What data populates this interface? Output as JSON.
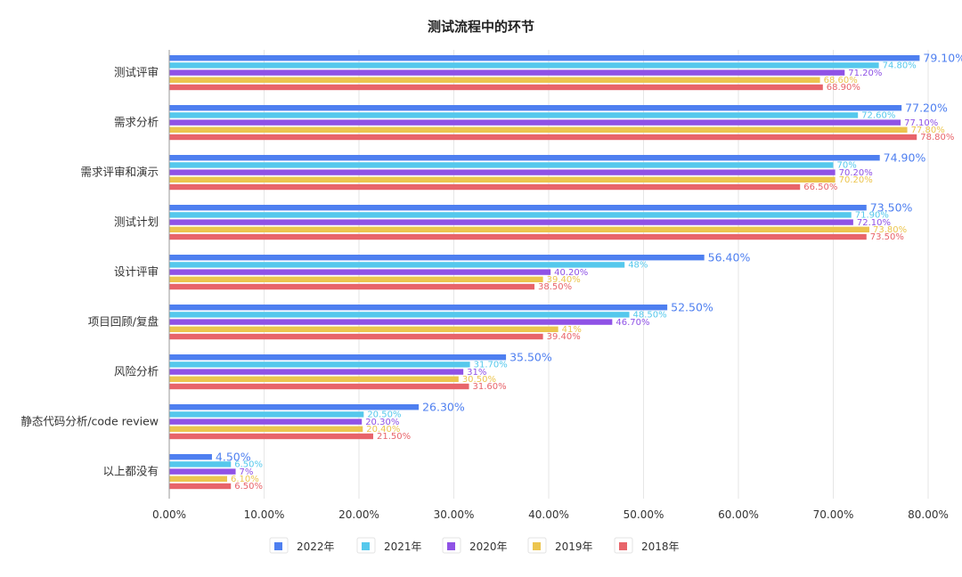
{
  "chart_data": {
    "type": "bar",
    "orientation": "horizontal",
    "title": "测试流程中的环节",
    "categories": [
      "测试评审",
      "需求分析",
      "需求评审和演示",
      "测试计划",
      "设计评审",
      "项目回顾/复盘",
      "风险分析",
      "静态代码分析/code review",
      "以上都没有"
    ],
    "series": [
      {
        "name": "2022年",
        "color": "#4e7ff0",
        "values": [
          79.1,
          77.2,
          74.9,
          73.5,
          56.4,
          52.5,
          35.5,
          26.3,
          4.5
        ],
        "labels": [
          "79.10%",
          "77.20%",
          "74.90%",
          "73.50%",
          "56.40%",
          "52.50%",
          "35.50%",
          "26.30%",
          "4.50%"
        ]
      },
      {
        "name": "2021年",
        "color": "#55c8ec",
        "values": [
          74.8,
          72.6,
          70,
          71.9,
          48,
          48.5,
          31.7,
          20.5,
          6.5
        ],
        "labels": [
          "74.80%",
          "72.60%",
          "70%",
          "71.90%",
          "48%",
          "48.50%",
          "31.70%",
          "20.50%",
          "6.50%"
        ]
      },
      {
        "name": "2020年",
        "color": "#8f52e6",
        "values": [
          71.2,
          77.1,
          70.2,
          72.1,
          40.2,
          46.7,
          31,
          20.3,
          7
        ],
        "labels": [
          "71.20%",
          "77.10%",
          "70.20%",
          "72.10%",
          "40.20%",
          "46.70%",
          "31%",
          "20.30%",
          "7%"
        ]
      },
      {
        "name": "2019年",
        "color": "#ecc54f",
        "values": [
          68.6,
          77.8,
          70.2,
          73.8,
          39.4,
          41,
          30.5,
          20.4,
          6.1
        ],
        "labels": [
          "68.60%",
          "77.80%",
          "70.20%",
          "73.80%",
          "39.40%",
          "41%",
          "30.50%",
          "20.40%",
          "6.10%"
        ]
      },
      {
        "name": "2018年",
        "color": "#e8646a",
        "values": [
          68.9,
          78.8,
          66.5,
          73.5,
          38.5,
          39.4,
          31.6,
          21.5,
          6.5
        ],
        "labels": [
          "68.90%",
          "78.80%",
          "66.50%",
          "73.50%",
          "38.50%",
          "39.40%",
          "31.60%",
          "21.50%",
          "6.50%"
        ]
      }
    ],
    "xlim": [
      0,
      80
    ],
    "xticks": [
      0,
      10,
      20,
      30,
      40,
      50,
      60,
      70,
      80
    ],
    "xtick_labels": [
      "0.00%",
      "10.00%",
      "20.00%",
      "30.00%",
      "40.00%",
      "50.00%",
      "60.00%",
      "70.00%",
      "80.00%"
    ],
    "grid": true,
    "legend": "bottom-center"
  }
}
